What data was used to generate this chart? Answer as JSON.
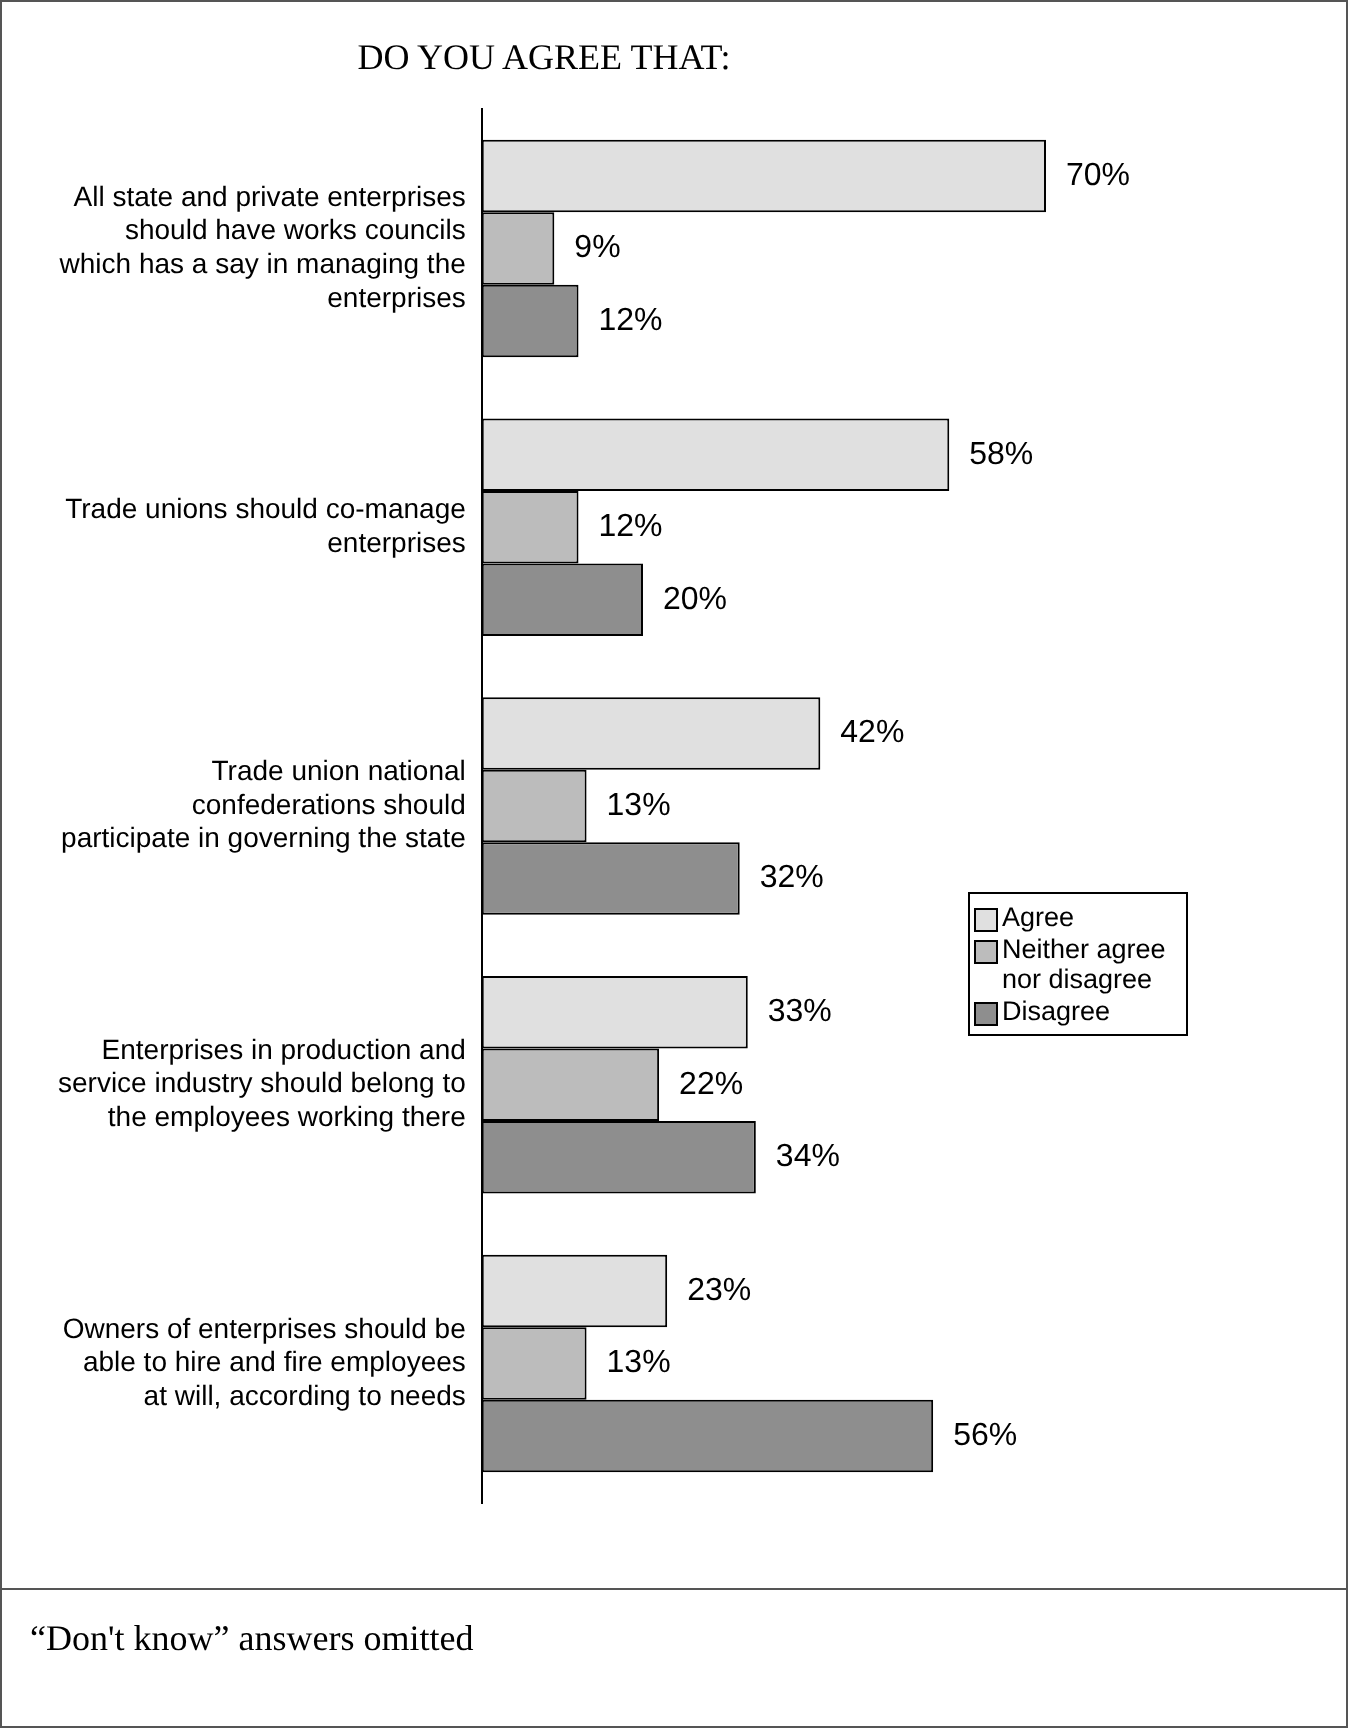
{
  "chart_data": {
    "type": "bar",
    "orientation": "horizontal",
    "title": "DO YOU AGREE THAT:",
    "categories": [
      "All state and private enterprises should have works councils which has a say in managing the enterprises",
      "Trade unions should co-manage enterprises",
      "Trade union national confederations should participate in governing the state",
      "Enterprises in production and service industry should belong to the employees working there",
      "Owners of enterprises should be able to hire and fire employees at will, according to needs"
    ],
    "series": [
      {
        "name": "Agree",
        "color": "#e0e0e0",
        "values": [
          70,
          58,
          42,
          33,
          23
        ],
        "value_labels": [
          "70%",
          "58%",
          "42%",
          "33%",
          "23%"
        ]
      },
      {
        "name": "Neither agree nor disagree",
        "color": "#bcbcbc",
        "values": [
          9,
          12,
          13,
          22,
          13
        ],
        "value_labels": [
          "9%",
          "12%",
          "13%",
          "22%",
          "13%"
        ]
      },
      {
        "name": "Disagree",
        "color": "#8e8e8e",
        "values": [
          12,
          20,
          32,
          34,
          56
        ],
        "value_labels": [
          "12%",
          "20%",
          "32%",
          "34%",
          "56%"
        ]
      }
    ],
    "legend": "right",
    "tick_labels": "y",
    "annotations": [
      "“Don't know” answers omitted"
    ]
  }
}
